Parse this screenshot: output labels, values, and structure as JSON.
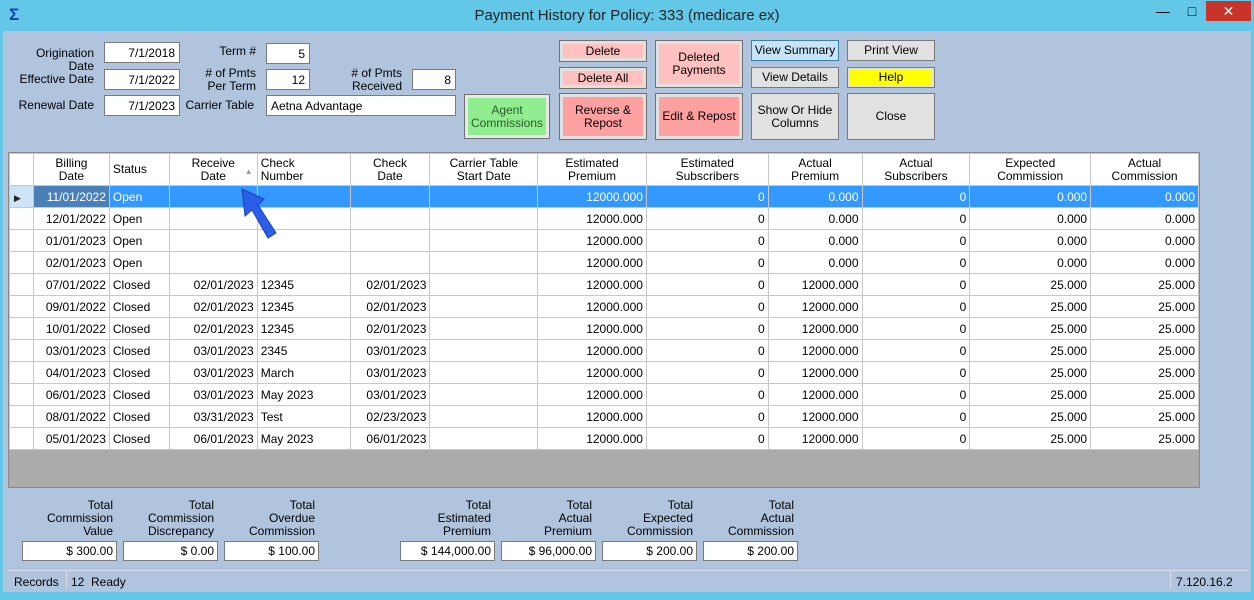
{
  "window": {
    "title": "Payment History for Policy: 333 (medicare ex)",
    "icon": "sigma-app-icon",
    "minimize": "—",
    "maximize": "□",
    "close": "✕"
  },
  "form": {
    "origination_date_label": "Origination Date",
    "origination_date": "7/1/2018",
    "effective_date_label": "Effective Date",
    "effective_date": "7/1/2022",
    "renewal_date_label": "Renewal Date",
    "renewal_date": "7/1/2023",
    "term_label": "Term #",
    "term": "5",
    "pmts_per_term_label": "# of Pmts\nPer Term",
    "pmts_per_term": "12",
    "pmts_received_label": "# of Pmts\nReceived",
    "pmts_received": "8",
    "carrier_table_label": "Carrier Table",
    "carrier_table": "Aetna Advantage"
  },
  "buttons": {
    "agent_commissions": "Agent\nCommissions",
    "delete": "Delete",
    "delete_all": "Delete All",
    "deleted_payments": "Deleted\nPayments",
    "reverse_repost": "Reverse &\nRepost",
    "edit_repost": "Edit & Repost",
    "view_summary": "View Summary",
    "view_details": "View Details",
    "show_hide_columns": "Show Or Hide\nColumns",
    "print_view": "Print View",
    "help": "Help",
    "close": "Close"
  },
  "colors": {
    "agent": "#90ee90",
    "pink": "#ffc0c0",
    "red": "#ffa0a0",
    "help": "#ffff00",
    "selected_row": "#3399ff",
    "background": "#b0c4de"
  },
  "grid": {
    "columns": [
      "Billing\nDate",
      "Status",
      "Receive\nDate",
      "Check\nNumber",
      "Check\nDate",
      "Carrier Table\nStart Date",
      "Estimated\nPremium",
      "Estimated\nSubscribers",
      "Actual\nPremium",
      "Actual\nSubscribers",
      "Expected\nCommission",
      "Actual\nCommission"
    ],
    "sort_column": "Receive Date",
    "sort_direction": "ascending",
    "rows": [
      [
        "11/01/2022",
        "Open",
        "",
        "",
        "",
        "",
        "12000.000",
        "0",
        "0.000",
        "0",
        "0.000",
        "0.000"
      ],
      [
        "12/01/2022",
        "Open",
        "",
        "",
        "",
        "",
        "12000.000",
        "0",
        "0.000",
        "0",
        "0.000",
        "0.000"
      ],
      [
        "01/01/2023",
        "Open",
        "",
        "",
        "",
        "",
        "12000.000",
        "0",
        "0.000",
        "0",
        "0.000",
        "0.000"
      ],
      [
        "02/01/2023",
        "Open",
        "",
        "",
        "",
        "",
        "12000.000",
        "0",
        "0.000",
        "0",
        "0.000",
        "0.000"
      ],
      [
        "07/01/2022",
        "Closed",
        "02/01/2023",
        "12345",
        "02/01/2023",
        "",
        "12000.000",
        "0",
        "12000.000",
        "0",
        "25.000",
        "25.000"
      ],
      [
        "09/01/2022",
        "Closed",
        "02/01/2023",
        "12345",
        "02/01/2023",
        "",
        "12000.000",
        "0",
        "12000.000",
        "0",
        "25.000",
        "25.000"
      ],
      [
        "10/01/2022",
        "Closed",
        "02/01/2023",
        "12345",
        "02/01/2023",
        "",
        "12000.000",
        "0",
        "12000.000",
        "0",
        "25.000",
        "25.000"
      ],
      [
        "03/01/2023",
        "Closed",
        "03/01/2023",
        "2345",
        "03/01/2023",
        "",
        "12000.000",
        "0",
        "12000.000",
        "0",
        "25.000",
        "25.000"
      ],
      [
        "04/01/2023",
        "Closed",
        "03/01/2023",
        "March",
        "03/01/2023",
        "",
        "12000.000",
        "0",
        "12000.000",
        "0",
        "25.000",
        "25.000"
      ],
      [
        "06/01/2023",
        "Closed",
        "03/01/2023",
        "May 2023",
        "03/01/2023",
        "",
        "12000.000",
        "0",
        "12000.000",
        "0",
        "25.000",
        "25.000"
      ],
      [
        "08/01/2022",
        "Closed",
        "03/31/2023",
        "Test",
        "02/23/2023",
        "",
        "12000.000",
        "0",
        "12000.000",
        "0",
        "25.000",
        "25.000"
      ],
      [
        "05/01/2023",
        "Closed",
        "06/01/2023",
        "May 2023",
        "06/01/2023",
        "",
        "12000.000",
        "0",
        "12000.000",
        "0",
        "25.000",
        "25.000"
      ]
    ]
  },
  "totals": [
    {
      "label": "Total\nCommission\nValue",
      "value": "$ 300.00"
    },
    {
      "label": "Total\nCommission\nDiscrepancy",
      "value": "$ 0.00"
    },
    {
      "label": "Total\nOverdue\nCommission",
      "value": "$ 100.00"
    },
    {
      "label": "Total\nEstimated\nPremium",
      "value": "$ 144,000.00"
    },
    {
      "label": "Total\nActual\nPremium",
      "value": "$ 96,000.00"
    },
    {
      "label": "Total\nExpected\nCommission",
      "value": "$ 200.00"
    },
    {
      "label": "Total\nActual\nCommission",
      "value": "$ 200.00"
    }
  ],
  "status": {
    "records_label": "Records",
    "records": "12",
    "state": "Ready",
    "version": "7.120.16.2"
  }
}
